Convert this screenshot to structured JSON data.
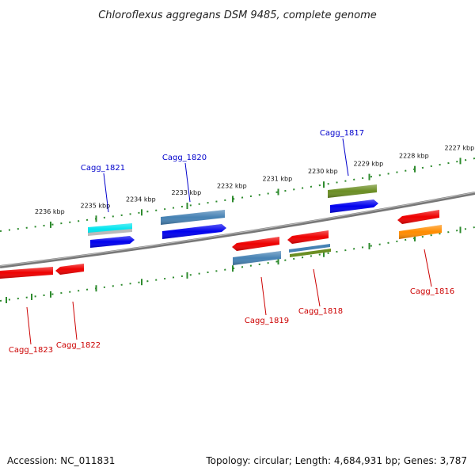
{
  "title": "Chloroflexus aggregans DSM 9485, complete genome",
  "footer": {
    "accession": "Accession: NC_011831",
    "stats": "Topology: circular; Length: 4,684,931 bp; Genes: 3,787"
  },
  "colors": {
    "forward_label": "#0000cc",
    "reverse_label": "#cc0000",
    "backbone": "#777777",
    "tick": "#2e8b2e"
  },
  "scale_labels": [
    {
      "text": "2236 kbp",
      "kbp": 2236
    },
    {
      "text": "2235 kbp",
      "kbp": 2235
    },
    {
      "text": "2234 kbp",
      "kbp": 2234
    },
    {
      "text": "2233 kbp",
      "kbp": 2233
    },
    {
      "text": "2232 kbp",
      "kbp": 2232
    },
    {
      "text": "2231 kbp",
      "kbp": 2231
    },
    {
      "text": "2230 kbp",
      "kbp": 2230
    },
    {
      "text": "2229 kbp",
      "kbp": 2229
    },
    {
      "text": "2228 kbp",
      "kbp": 2228
    },
    {
      "text": "2227 kbp",
      "kbp": 2227
    }
  ],
  "genes": [
    {
      "label": "Cagg_1821",
      "strand": "forward",
      "color": "#0000ee",
      "track_color": "#00e5ee"
    },
    {
      "label": "Cagg_1820",
      "strand": "forward",
      "color": "#0000ee",
      "track_color": "#4682b4"
    },
    {
      "label": "Cagg_1817",
      "strand": "forward",
      "color": "#0000ee",
      "track_color": "#6b8e23"
    },
    {
      "label": "Cagg_1823",
      "strand": "reverse",
      "color": "#ee0000"
    },
    {
      "label": "Cagg_1822",
      "strand": "reverse",
      "color": "#ee0000"
    },
    {
      "label": "Cagg_1819",
      "strand": "reverse",
      "color": "#ee0000",
      "track_color": "#4682b4"
    },
    {
      "label": "Cagg_1818",
      "strand": "reverse",
      "color": "#ee0000",
      "track_color": "#4682b4",
      "track_color_2": "#6b8e23"
    },
    {
      "label": "Cagg_1816",
      "strand": "reverse",
      "color": "#ee0000",
      "track_color": "#ff8c00"
    }
  ]
}
